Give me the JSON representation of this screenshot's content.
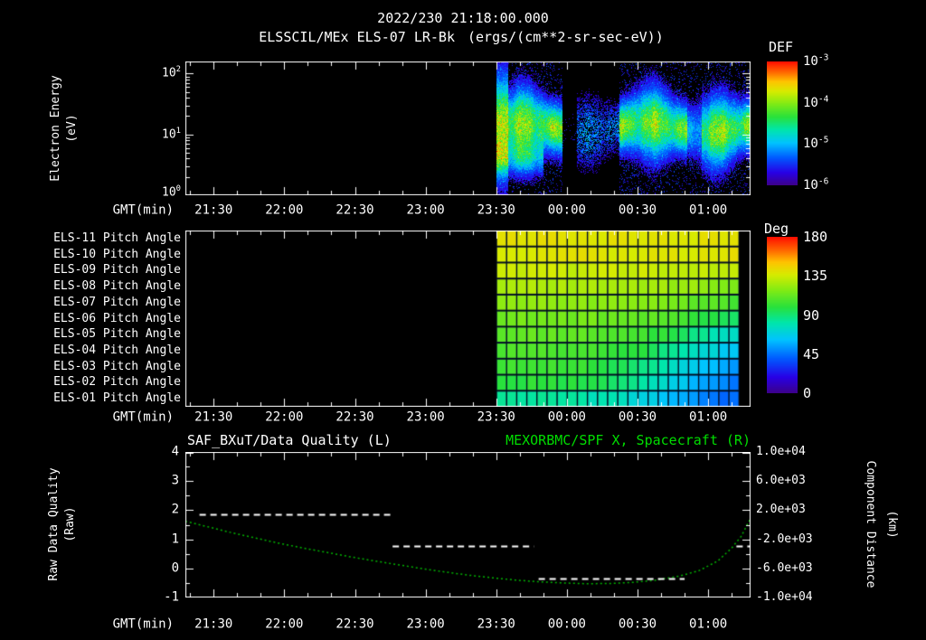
{
  "header": {
    "title": "2022/230 21:18:00.000",
    "instrument": "ELSSCIL/MEx ELS-07 LR-Bk",
    "units": "(ergs/(cm**2-sr-sec-eV))"
  },
  "colors": {
    "background": "#000000",
    "text": "#ffffff",
    "title_green": "#00dd00",
    "curve_green": "#00b400",
    "quality_white": "#ffffff"
  },
  "time_axis": {
    "label": "GMT(min)",
    "start_time": "21:18:00.000",
    "duration_min": 240,
    "ticks": [
      {
        "t": 12,
        "label": "21:30"
      },
      {
        "t": 42,
        "label": "22:00"
      },
      {
        "t": 72,
        "label": "22:30"
      },
      {
        "t": 102,
        "label": "23:00"
      },
      {
        "t": 132,
        "label": "23:30"
      },
      {
        "t": 162,
        "label": "00:00"
      },
      {
        "t": 192,
        "label": "00:30"
      },
      {
        "t": 222,
        "label": "01:00"
      }
    ]
  },
  "spectrogram_panel": {
    "y_label_line1": "Electron Energy",
    "y_label_line2": "(eV)",
    "y_tick_exponents": [
      "2",
      "1",
      "0"
    ],
    "colorbar": {
      "title": "DEF",
      "tick_exponents": [
        "-3",
        "-4",
        "-5",
        "-6"
      ]
    }
  },
  "pitch_panel": {
    "row_labels": [
      "ELS-11 Pitch Angle",
      "ELS-10 Pitch Angle",
      "ELS-09 Pitch Angle",
      "ELS-08 Pitch Angle",
      "ELS-07 Pitch Angle",
      "ELS-06 Pitch Angle",
      "ELS-05 Pitch Angle",
      "ELS-04 Pitch Angle",
      "ELS-03 Pitch Angle",
      "ELS-02 Pitch Angle",
      "ELS-01 Pitch Angle"
    ],
    "colorbar": {
      "title": "Deg",
      "tick_labels": [
        "180",
        "135",
        "90",
        "45",
        "0"
      ]
    }
  },
  "bottom_panel": {
    "left_title": "SAF_BXuT/Data Quality (L)",
    "right_title": "MEXORBMC/SPF X, Spacecraft (R)",
    "left_axis_label_line1": "Raw Data Quality",
    "left_axis_label_line2": "(Raw)",
    "left_tick_labels": [
      "4",
      "3",
      "2",
      "1",
      "0",
      "-1"
    ],
    "right_axis_label_line1": "Component Distance",
    "right_axis_label_line2": "(km)",
    "right_tick_labels": [
      "1.0e+04",
      "6.0e+03",
      "2.0e+03",
      "-2.0e+03",
      "-6.0e+03",
      "-1.0e+04"
    ]
  },
  "chart_data": [
    {
      "id": "electron-energy-spectrogram",
      "type": "heatmap",
      "title": "ELSSCIL/MEx ELS-07 LR-Bk",
      "value_units": "ergs/(cm**2-sr-sec-eV)",
      "x_axis": {
        "label": "GMT(min)",
        "start": "21:18",
        "end": "01:18",
        "tick_labels": [
          "21:30",
          "22:00",
          "22:30",
          "23:00",
          "23:30",
          "00:00",
          "00:30",
          "01:00"
        ]
      },
      "y_axis": {
        "label": "Electron Energy (eV)",
        "scale": "log",
        "min": 1,
        "max": 158
      },
      "color_axis": {
        "title": "DEF",
        "scale": "log",
        "min": 1e-06,
        "max": 0.001
      },
      "data_start_min": 132,
      "weak_interval_min": [
        160,
        184
      ],
      "dropout_interval_min": [
        213,
        219
      ],
      "band_center_eV": 13,
      "band_sigma_decades": 0.3,
      "band_peak": 0.0003
    },
    {
      "id": "pitch-angle-heatmap",
      "type": "heatmap",
      "row_labels": [
        "ELS-11",
        "ELS-10",
        "ELS-09",
        "ELS-08",
        "ELS-07",
        "ELS-06",
        "ELS-05",
        "ELS-04",
        "ELS-03",
        "ELS-02",
        "ELS-01"
      ],
      "color_axis": {
        "title": "Deg",
        "min": 0,
        "max": 180
      },
      "data_start_min": 132,
      "data_end_min": 235,
      "time_bins_min": [
        132,
        142,
        152,
        161,
        171,
        181,
        191,
        200,
        210,
        220,
        230,
        235
      ],
      "values_deg": [
        [
          142,
          140,
          141,
          140,
          139,
          140,
          141,
          140,
          140,
          139,
          140,
          140
        ],
        [
          138,
          139,
          138,
          139,
          140,
          139,
          138,
          139,
          139,
          138,
          139,
          140
        ],
        [
          133,
          134,
          135,
          134,
          133,
          134,
          135,
          134,
          133,
          132,
          131,
          132
        ],
        [
          127,
          128,
          127,
          128,
          127,
          126,
          127,
          126,
          125,
          123,
          121,
          119
        ],
        [
          121,
          122,
          121,
          122,
          121,
          120,
          119,
          118,
          116,
          113,
          109,
          106
        ],
        [
          115,
          116,
          115,
          116,
          115,
          114,
          113,
          111,
          107,
          101,
          96,
          91
        ],
        [
          111,
          112,
          111,
          112,
          111,
          109,
          107,
          103,
          97,
          89,
          81,
          76
        ],
        [
          107,
          108,
          107,
          107,
          106,
          104,
          101,
          95,
          87,
          77,
          69,
          63
        ],
        [
          103,
          104,
          103,
          103,
          101,
          98,
          94,
          87,
          77,
          67,
          59,
          53
        ],
        [
          99,
          100,
          99,
          98,
          96,
          93,
          87,
          79,
          69,
          59,
          51,
          46
        ],
        [
          82,
          84,
          83,
          82,
          80,
          78,
          74,
          68,
          60,
          52,
          46,
          42
        ]
      ]
    },
    {
      "id": "quality-and-spacecraft-line",
      "type": "line",
      "left_axis": {
        "label": "Raw Data Quality (Raw)",
        "min": -1,
        "max": 4
      },
      "right_axis": {
        "label": "Component Distance (km)",
        "min": -10000,
        "max": 10000
      },
      "series": [
        {
          "name": "SAF_BXuT/Data Quality (L)",
          "axis": "left",
          "style": "dashed",
          "color": "#ffffff",
          "segments": [
            {
              "t_start": 6,
              "t_end": 87,
              "value": 1.85
            },
            {
              "t_start": 88,
              "t_end": 148,
              "value": 0.78
            },
            {
              "t_start": 150,
              "t_end": 212,
              "value": -0.35
            },
            {
              "t_start": 234,
              "t_end": 240,
              "value": 0.78
            }
          ]
        },
        {
          "name": "MEXORBMC/SPF X, Spacecraft (R)",
          "axis": "right",
          "style": "dotted",
          "color": "#00b400",
          "t_min": [
            0,
            10,
            20,
            30,
            40,
            50,
            60,
            70,
            80,
            90,
            100,
            110,
            120,
            130,
            140,
            150,
            160,
            170,
            180,
            190,
            200,
            210,
            218,
            226,
            232,
            236,
            240
          ],
          "km": [
            480,
            -320,
            -1120,
            -1840,
            -2560,
            -3200,
            -3800,
            -4400,
            -4960,
            -5480,
            -6000,
            -6480,
            -6920,
            -7280,
            -7600,
            -7840,
            -8000,
            -8100,
            -8080,
            -7920,
            -7600,
            -7040,
            -6320,
            -5000,
            -3200,
            -1600,
            880
          ]
        }
      ]
    }
  ]
}
